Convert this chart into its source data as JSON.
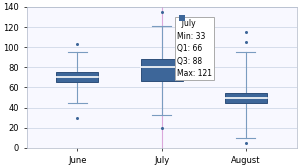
{
  "categories": [
    "June",
    "July",
    "August"
  ],
  "box_data": [
    {
      "q1": 65,
      "median": 70,
      "q3": 75,
      "whislo": 45,
      "whishi": 95,
      "fliers": [
        30,
        103
      ]
    },
    {
      "q1": 66,
      "median": 80,
      "q3": 88,
      "whislo": 33,
      "whishi": 121,
      "fliers": [
        20,
        135
      ]
    },
    {
      "q1": 45,
      "median": 50,
      "q3": 55,
      "whislo": 10,
      "whishi": 95,
      "fliers": [
        5,
        105,
        115
      ]
    }
  ],
  "ylim": [
    0,
    140
  ],
  "yticks": [
    0,
    20,
    40,
    60,
    80,
    100,
    120,
    140
  ],
  "box_facecolor": "#3d6699",
  "box_edgecolor": "#2e4f7a",
  "whisker_color": "#7a9cc0",
  "median_color": "#ffffff",
  "flier_color": "#3d6699",
  "highlight_col_idx": 1,
  "highlight_line_color": "#d8a0d8",
  "tooltip_title": "July",
  "tooltip_lines": [
    "Min: 33",
    "Q1: 66",
    "Q3: 88",
    "Max: 121"
  ],
  "tooltip_swatch_color": "#3d6699",
  "bg_color": "#ffffff",
  "plot_bg_color": "#f8f8ff",
  "grid_color": "#d0d8e8",
  "tick_fontsize": 6,
  "box_width": 0.5
}
